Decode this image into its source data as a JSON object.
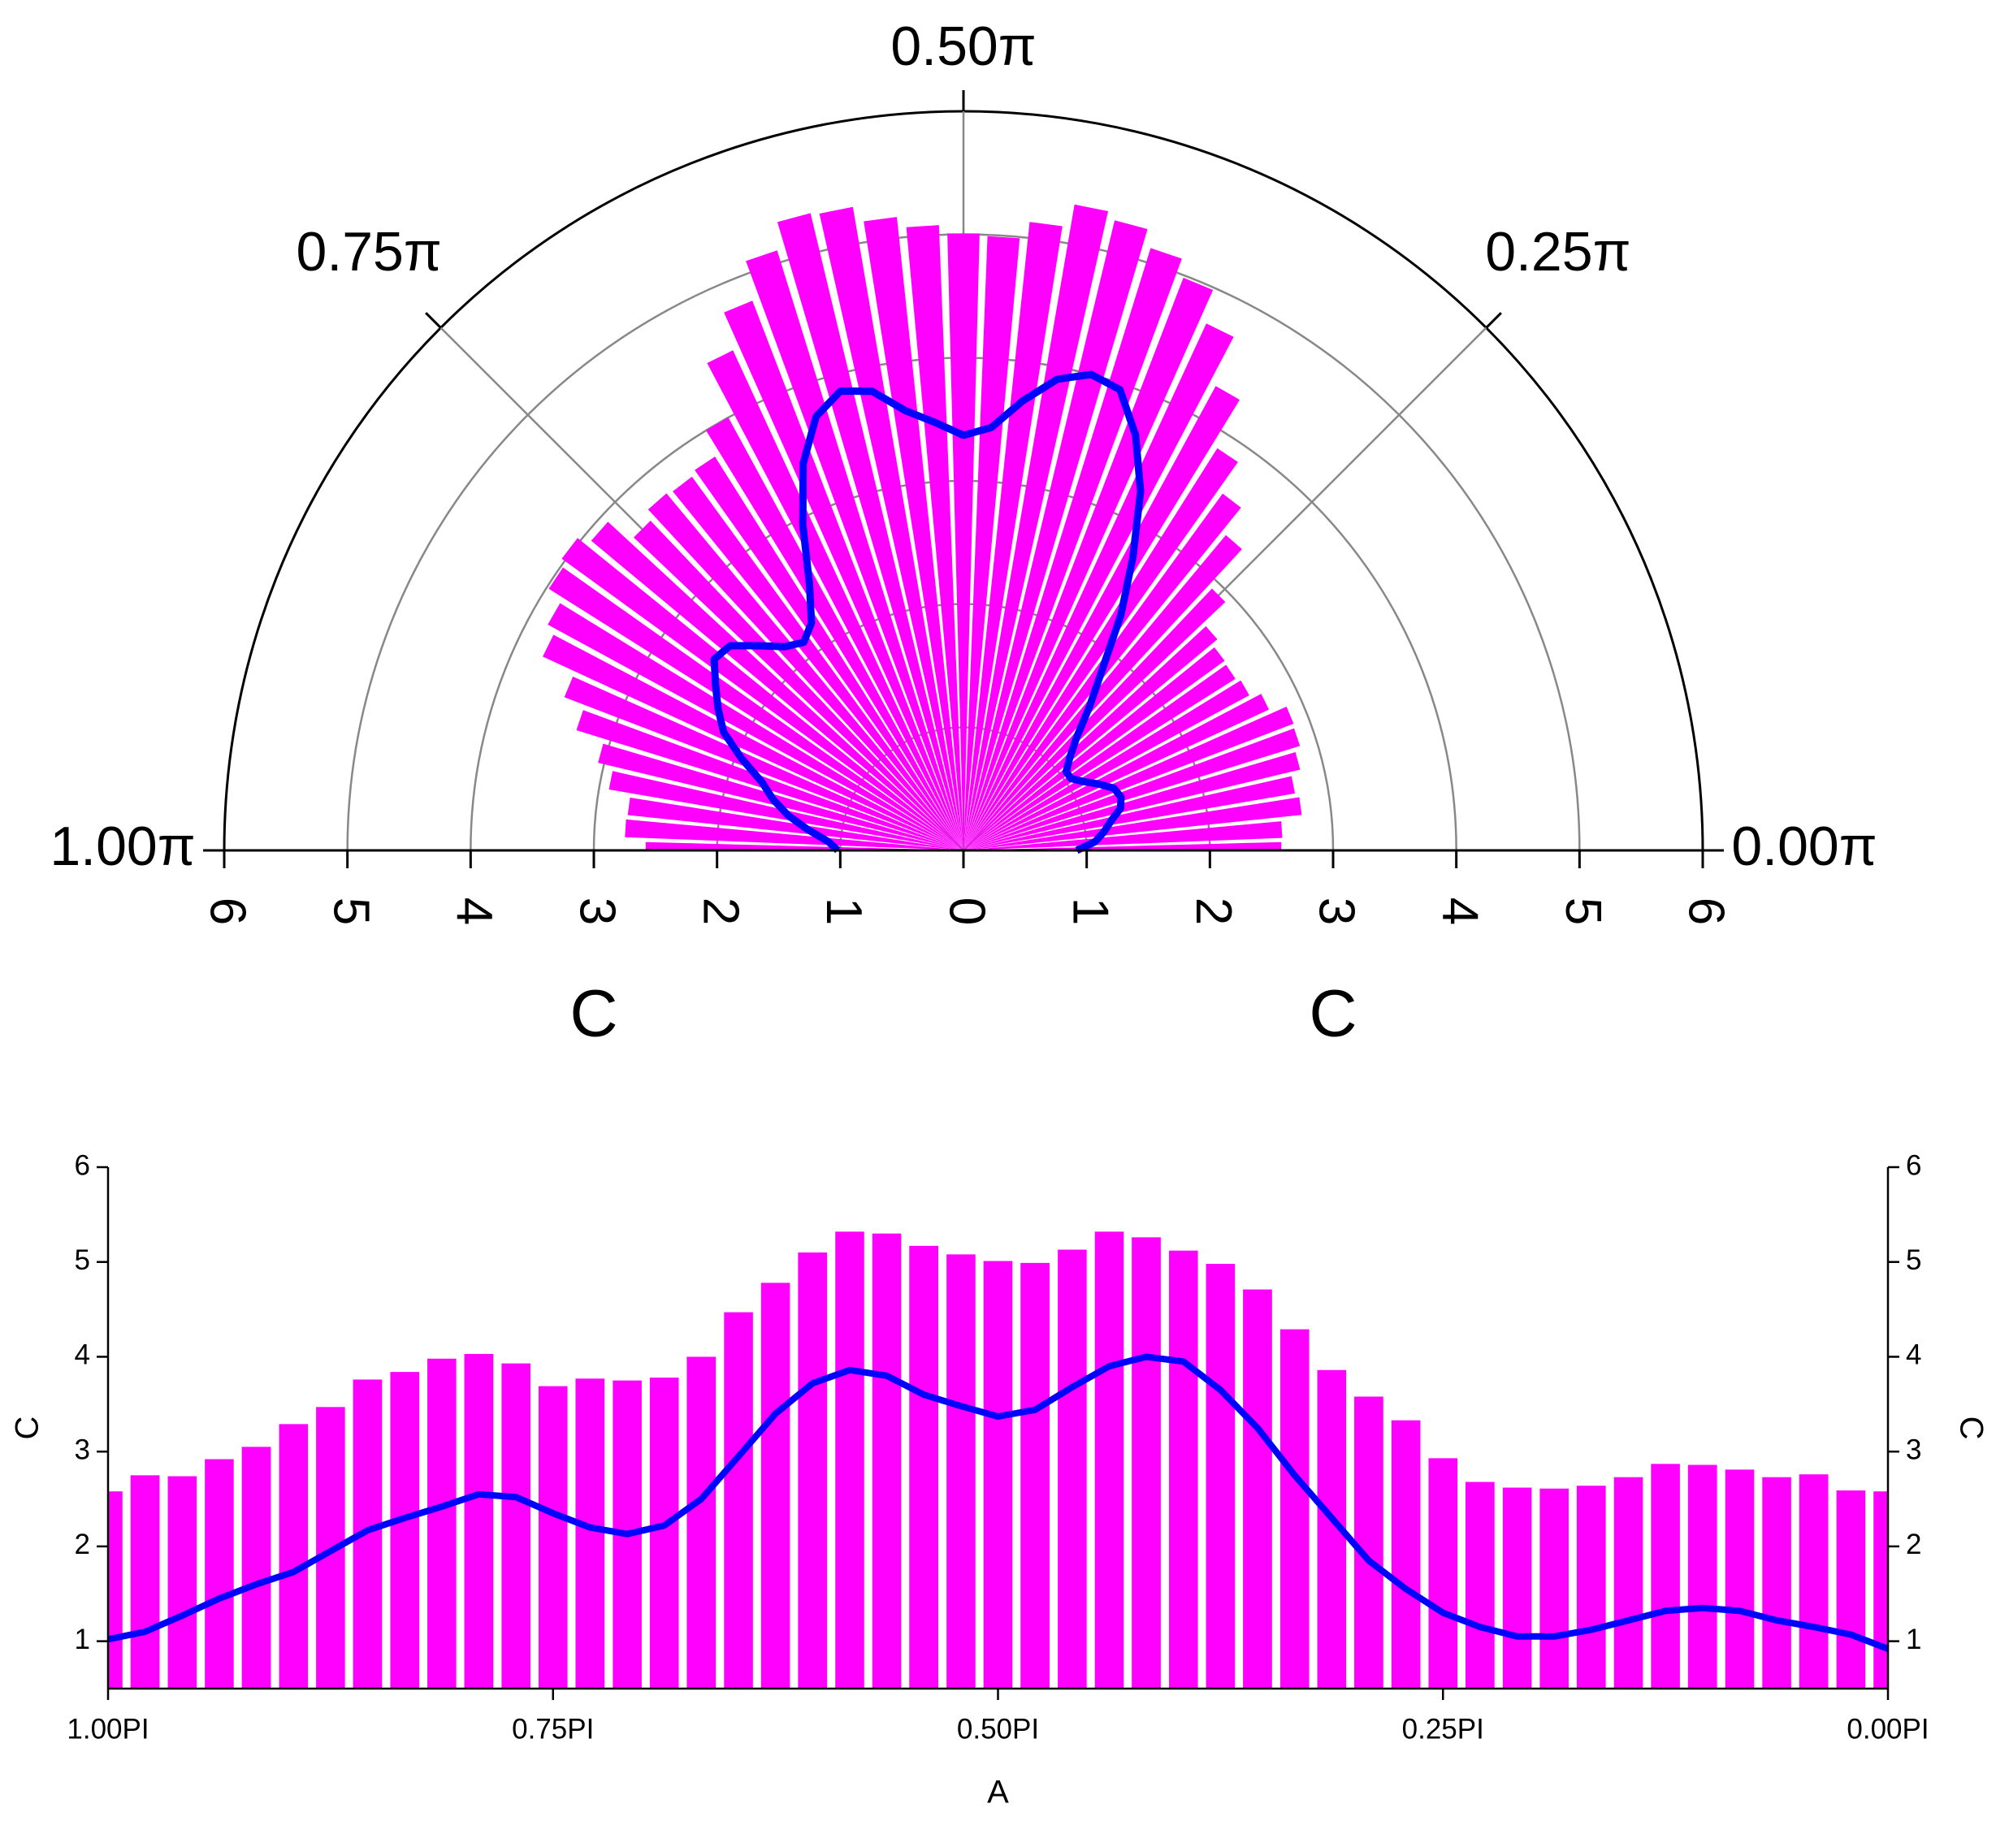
{
  "chart_data": [
    {
      "type": "polar",
      "x": [
        1,
        0.9792,
        0.9583,
        0.9375,
        0.9167,
        0.8958,
        0.875,
        0.8542,
        0.8333,
        0.8125,
        0.7917,
        0.7708,
        0.75,
        0.7292,
        0.7083,
        0.6875,
        0.6667,
        0.6458,
        0.625,
        0.6042,
        0.5833,
        0.5625,
        0.5417,
        0.5208,
        0.5,
        0.4792,
        0.4583,
        0.4375,
        0.4167,
        0.3958,
        0.375,
        0.3542,
        0.3333,
        0.3125,
        0.2917,
        0.2708,
        0.25,
        0.2292,
        0.2083,
        0.1875,
        0.1667,
        0.1458,
        0.125,
        0.1042,
        0.0833,
        0.0625,
        0.0417,
        0.0208,
        0
      ],
      "series": [
        {
          "type": "bar",
          "color": "#ff00ff",
          "values": [
            2.58,
            2.75,
            2.74,
            2.92,
            3.05,
            3.29,
            3.47,
            3.76,
            3.84,
            3.98,
            4.03,
            3.93,
            3.69,
            3.77,
            3.75,
            3.78,
            4.0,
            4.47,
            4.78,
            5.1,
            5.32,
            5.3,
            5.17,
            5.08,
            5.01,
            4.99,
            5.13,
            5.32,
            5.26,
            5.12,
            4.98,
            4.71,
            4.29,
            3.86,
            3.58,
            3.33,
            2.93,
            2.68,
            2.62,
            2.61,
            2.64,
            2.73,
            2.87,
            2.86,
            2.81,
            2.73,
            2.76,
            2.59,
            2.58
          ]
        },
        {
          "type": "line",
          "color": "#0000ff",
          "values": [
            1.02,
            1.1,
            1.27,
            1.45,
            1.6,
            1.73,
            1.95,
            2.17,
            2.3,
            2.42,
            2.55,
            2.52,
            2.35,
            2.2,
            2.13,
            2.22,
            2.5,
            2.95,
            3.4,
            3.72,
            3.86,
            3.8,
            3.6,
            3.48,
            3.37,
            3.44,
            3.68,
            3.9,
            4.0,
            3.95,
            3.65,
            3.25,
            2.75,
            2.3,
            1.85,
            1.55,
            1.3,
            1.15,
            1.05,
            1.05,
            1.12,
            1.22,
            1.32,
            1.35,
            1.32,
            1.22,
            1.15,
            1.07,
            0.92
          ]
        }
      ],
      "rlim": [
        0,
        6
      ],
      "rticks": [
        0,
        1,
        2,
        3,
        4,
        5,
        6
      ],
      "xlim": [
        0,
        1
      ],
      "xticks": [
        {
          "value": 0,
          "label": "0.00π"
        },
        {
          "value": 0.25,
          "label": "0.25π"
        },
        {
          "value": 0.5,
          "label": "0.50π"
        },
        {
          "value": 0.75,
          "label": "0.75π"
        },
        {
          "value": 1,
          "label": "1.00π"
        }
      ],
      "rlabel": "C"
    },
    {
      "type": "bar_line",
      "x": [
        1,
        0.9792,
        0.9583,
        0.9375,
        0.9167,
        0.8958,
        0.875,
        0.8542,
        0.8333,
        0.8125,
        0.7917,
        0.7708,
        0.75,
        0.7292,
        0.7083,
        0.6875,
        0.6667,
        0.6458,
        0.625,
        0.6042,
        0.5833,
        0.5625,
        0.5417,
        0.5208,
        0.5,
        0.4792,
        0.4583,
        0.4375,
        0.4167,
        0.3958,
        0.375,
        0.3542,
        0.3333,
        0.3125,
        0.2917,
        0.2708,
        0.25,
        0.2292,
        0.2083,
        0.1875,
        0.1667,
        0.1458,
        0.125,
        0.1042,
        0.0833,
        0.0625,
        0.0417,
        0.0208,
        0
      ],
      "series": [
        {
          "type": "bar",
          "color": "#ff00ff",
          "values": [
            2.58,
            2.75,
            2.74,
            2.92,
            3.05,
            3.29,
            3.47,
            3.76,
            3.84,
            3.98,
            4.03,
            3.93,
            3.69,
            3.77,
            3.75,
            3.78,
            4.0,
            4.47,
            4.78,
            5.1,
            5.32,
            5.3,
            5.17,
            5.08,
            5.01,
            4.99,
            5.13,
            5.32,
            5.26,
            5.12,
            4.98,
            4.71,
            4.29,
            3.86,
            3.58,
            3.33,
            2.93,
            2.68,
            2.62,
            2.61,
            2.64,
            2.73,
            2.87,
            2.86,
            2.81,
            2.73,
            2.76,
            2.59,
            2.58
          ]
        },
        {
          "type": "line",
          "color": "#0000ff",
          "values": [
            1.02,
            1.1,
            1.27,
            1.45,
            1.6,
            1.73,
            1.95,
            2.17,
            2.3,
            2.42,
            2.55,
            2.52,
            2.35,
            2.2,
            2.13,
            2.22,
            2.5,
            2.95,
            3.4,
            3.72,
            3.86,
            3.8,
            3.6,
            3.48,
            3.37,
            3.44,
            3.68,
            3.9,
            4.0,
            3.95,
            3.65,
            3.25,
            2.75,
            2.3,
            1.85,
            1.55,
            1.3,
            1.15,
            1.05,
            1.05,
            1.12,
            1.22,
            1.32,
            1.35,
            1.32,
            1.22,
            1.15,
            1.07,
            0.92
          ]
        }
      ],
      "xlim": [
        1,
        0
      ],
      "xticks": [
        {
          "value": 1,
          "label": "1.00PI"
        },
        {
          "value": 0.75,
          "label": "0.75PI"
        },
        {
          "value": 0.5,
          "label": "0.50PI"
        },
        {
          "value": 0.25,
          "label": "0.25PI"
        },
        {
          "value": 0,
          "label": "0.00PI"
        }
      ],
      "ylim": [
        0.5,
        6
      ],
      "yticks": [
        1,
        2,
        3,
        4,
        5,
        6
      ],
      "y2lim": [
        0.5,
        6
      ],
      "y2ticks": [
        1,
        2,
        3,
        4,
        5,
        6
      ],
      "xlabel": "A",
      "ylabel": "C",
      "y2label": "C"
    }
  ]
}
